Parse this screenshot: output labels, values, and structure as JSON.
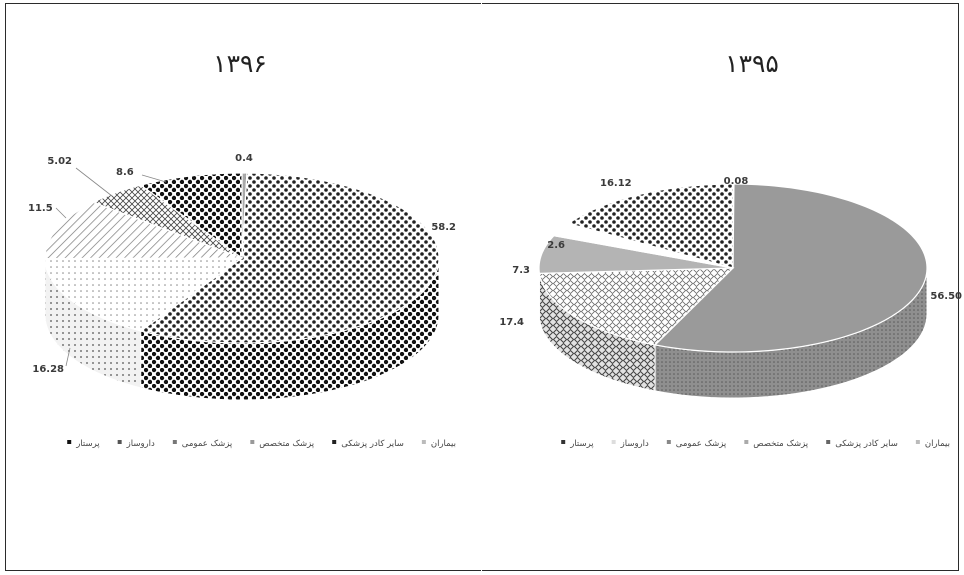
{
  "chart_data": [
    {
      "type": "pie",
      "title": "۱۳۹۶",
      "legend": [
        "بیماران",
        "سایر کادر پزشکی",
        "پزشک متخصص",
        "پزشک عمومی",
        "داروساز",
        "پرستار"
      ],
      "slices": [
        {
          "label": "",
          "value": 0.4,
          "display": "0.4"
        },
        {
          "label": "",
          "value": 58.2,
          "display": "58.2"
        },
        {
          "label": "",
          "value": 16.28,
          "display": "16.28"
        },
        {
          "label": "",
          "value": 11.5,
          "display": "11.5"
        },
        {
          "label": "",
          "value": 5.02,
          "display": "5.02"
        },
        {
          "label": "",
          "value": 8.6,
          "display": "8.6"
        }
      ]
    },
    {
      "type": "pie",
      "title": "۱۳۹۵",
      "legend": [
        "بیماران",
        "سایر کادر پزشکی",
        "پزشک متخصص",
        "پزشک عمومی",
        "داروساز",
        "پرستار"
      ],
      "slices": [
        {
          "label": "",
          "value": 0.08,
          "display": "0.08"
        },
        {
          "label": "",
          "value": 56.5,
          "display": "56.50"
        },
        {
          "label": "",
          "value": 17.4,
          "display": "17.4"
        },
        {
          "label": "",
          "value": 7.3,
          "display": "7.3"
        },
        {
          "label": "",
          "value": 2.6,
          "display": "2.6"
        },
        {
          "label": "",
          "value": 16.12,
          "display": "16.12"
        }
      ]
    }
  ]
}
